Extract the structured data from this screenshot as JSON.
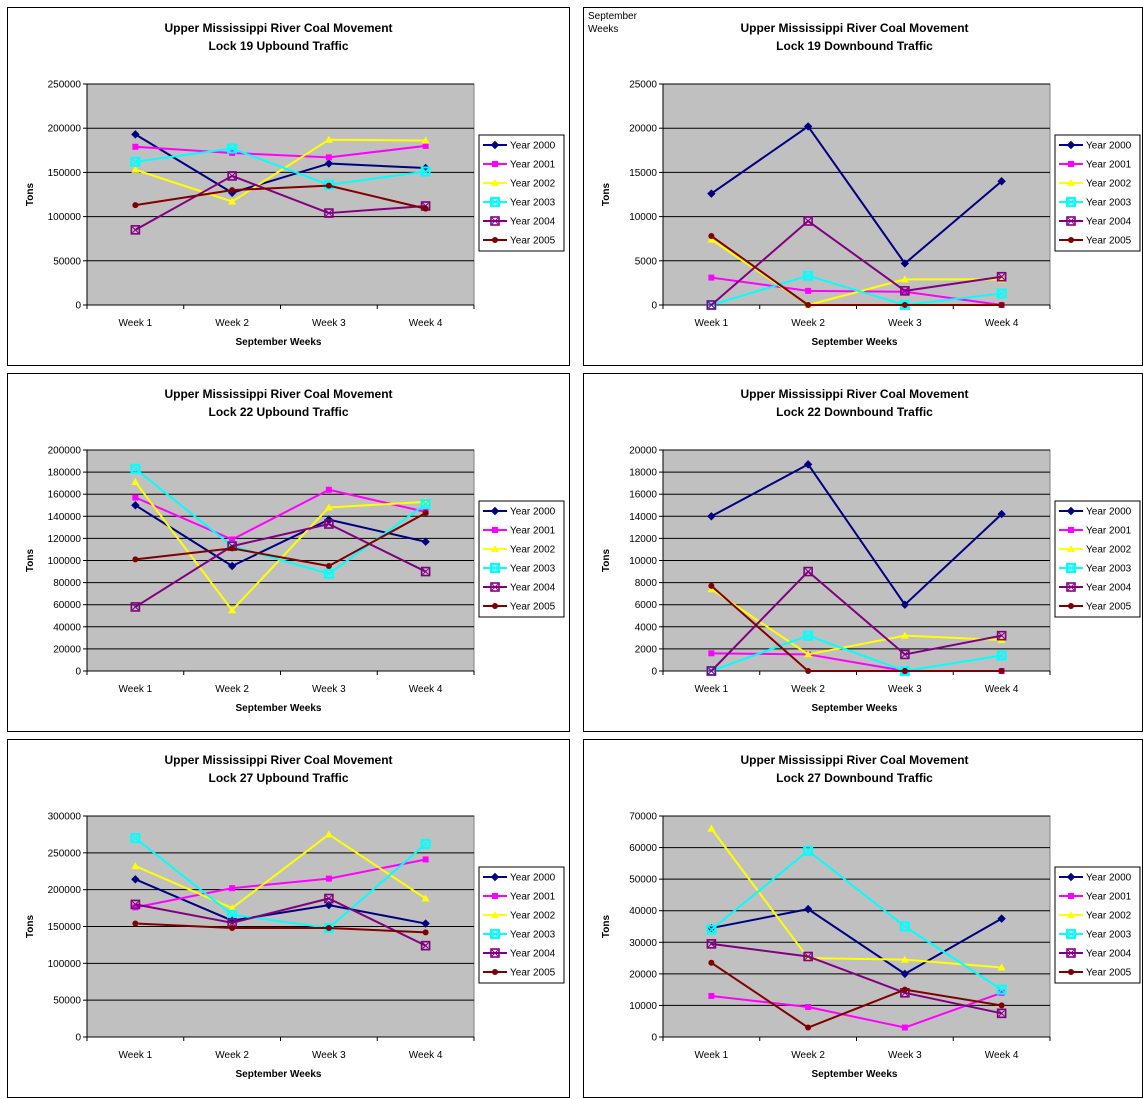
{
  "stray_label": "September Weeks",
  "legend_entries": [
    "Year 2000",
    "Year 2001",
    "Year 2002",
    "Year 2003",
    "Year 2004",
    "Year 2005"
  ],
  "colors": {
    "Year 2000": "#000080",
    "Year 2001": "#ff00ff",
    "Year 2002": "#ffff00",
    "Year 2003": "#00ffff",
    "Year 2004": "#800080",
    "Year 2005": "#800000",
    "plot_bg": "#c0c0c0"
  },
  "chart_data": [
    {
      "type": "line",
      "title": "Upper Mississippi River Coal Movement",
      "subtitle": "Lock 19 Upbound Traffic",
      "xlabel": "September Weeks",
      "ylabel": "Tons",
      "categories": [
        "Week 1",
        "Week 2",
        "Week 3",
        "Week 4"
      ],
      "ylim": [
        0,
        250000
      ],
      "yticks": [
        "0",
        "50000",
        "100000",
        "150000",
        "200000",
        "250000"
      ],
      "grid": true,
      "legend": "right",
      "series": [
        {
          "name": "Year 2000",
          "values": [
            193000,
            127000,
            160000,
            155000
          ]
        },
        {
          "name": "Year 2001",
          "values": [
            179000,
            172000,
            167000,
            180000
          ]
        },
        {
          "name": "Year 2002",
          "values": [
            153000,
            117000,
            187000,
            186000
          ]
        },
        {
          "name": "Year 2003",
          "values": [
            162000,
            177000,
            136000,
            151000
          ]
        },
        {
          "name": "Year 2004",
          "values": [
            85000,
            146000,
            104000,
            112000
          ]
        },
        {
          "name": "Year 2005",
          "values": [
            113000,
            130000,
            135000,
            109000
          ]
        }
      ]
    },
    {
      "type": "line",
      "title": "Upper Mississippi River Coal Movement",
      "subtitle": "Lock 19 Downbound Traffic",
      "xlabel": "September Weeks",
      "ylabel": "Tons",
      "categories": [
        "Week 1",
        "Week 2",
        "Week 3",
        "Week 4"
      ],
      "ylim": [
        0,
        25000
      ],
      "yticks": [
        "0",
        "5000",
        "10000",
        "15000",
        "20000",
        "25000"
      ],
      "grid": true,
      "legend": "right",
      "series": [
        {
          "name": "Year 2000",
          "values": [
            12600,
            20200,
            4700,
            14000
          ]
        },
        {
          "name": "Year 2001",
          "values": [
            3100,
            1600,
            1500,
            0
          ]
        },
        {
          "name": "Year 2002",
          "values": [
            7400,
            0,
            2900,
            2900
          ]
        },
        {
          "name": "Year 2003",
          "values": [
            0,
            3300,
            0,
            1300
          ]
        },
        {
          "name": "Year 2004",
          "values": [
            0,
            9500,
            1600,
            3200
          ]
        },
        {
          "name": "Year 2005",
          "values": [
            7800,
            0,
            0,
            0
          ]
        }
      ]
    },
    {
      "type": "line",
      "title": "Upper Mississippi River Coal Movement",
      "subtitle": "Lock 22 Upbound Traffic",
      "xlabel": "September Weeks",
      "ylabel": "Tons",
      "categories": [
        "Week 1",
        "Week 2",
        "Week 3",
        "Week 4"
      ],
      "ylim": [
        0,
        200000
      ],
      "yticks": [
        "0",
        "20000",
        "40000",
        "60000",
        "80000",
        "100000",
        "120000",
        "140000",
        "160000",
        "180000",
        "200000"
      ],
      "grid": true,
      "legend": "right",
      "series": [
        {
          "name": "Year 2000",
          "values": [
            150000,
            95000,
            137000,
            117000
          ]
        },
        {
          "name": "Year 2001",
          "values": [
            157000,
            119000,
            164000,
            144000
          ]
        },
        {
          "name": "Year 2002",
          "values": [
            171000,
            55000,
            148000,
            153000
          ]
        },
        {
          "name": "Year 2003",
          "values": [
            183000,
            113000,
            88000,
            151000
          ]
        },
        {
          "name": "Year 2004",
          "values": [
            58000,
            113000,
            133000,
            90000
          ]
        },
        {
          "name": "Year 2005",
          "values": [
            101000,
            111000,
            95000,
            143000
          ]
        }
      ]
    },
    {
      "type": "line",
      "title": "Upper Mississippi River Coal Movement",
      "subtitle": "Lock 22 Downbound Traffic",
      "xlabel": "September Weeks",
      "ylabel": "Tons",
      "categories": [
        "Week 1",
        "Week 2",
        "Week 3",
        "Week 4"
      ],
      "ylim": [
        0,
        20000
      ],
      "yticks": [
        "0",
        "2000",
        "4000",
        "6000",
        "8000",
        "10000",
        "12000",
        "14000",
        "16000",
        "18000",
        "20000"
      ],
      "grid": true,
      "legend": "right",
      "series": [
        {
          "name": "Year 2000",
          "values": [
            14000,
            18700,
            6000,
            14200
          ]
        },
        {
          "name": "Year 2001",
          "values": [
            1600,
            1500,
            0,
            0
          ]
        },
        {
          "name": "Year 2002",
          "values": [
            7400,
            1500,
            3200,
            2800
          ]
        },
        {
          "name": "Year 2003",
          "values": [
            0,
            3200,
            0,
            1400
          ]
        },
        {
          "name": "Year 2004",
          "values": [
            0,
            9000,
            1500,
            3200
          ]
        },
        {
          "name": "Year 2005",
          "values": [
            7700,
            0,
            0,
            0
          ]
        }
      ]
    },
    {
      "type": "line",
      "title": "Upper Mississippi River Coal Movement",
      "subtitle": "Lock 27 Upbound Traffic",
      "xlabel": "September Weeks",
      "ylabel": "Tons",
      "categories": [
        "Week 1",
        "Week 2",
        "Week 3",
        "Week 4"
      ],
      "ylim": [
        0,
        300000
      ],
      "yticks": [
        "0",
        "50000",
        "100000",
        "150000",
        "200000",
        "250000",
        "300000"
      ],
      "grid": true,
      "legend": "right",
      "series": [
        {
          "name": "Year 2000",
          "values": [
            214000,
            158000,
            179000,
            154000
          ]
        },
        {
          "name": "Year 2001",
          "values": [
            176000,
            202000,
            215000,
            241000
          ]
        },
        {
          "name": "Year 2002",
          "values": [
            232000,
            175000,
            275000,
            188000
          ]
        },
        {
          "name": "Year 2003",
          "values": [
            270000,
            166000,
            148000,
            262000
          ]
        },
        {
          "name": "Year 2004",
          "values": [
            180000,
            155000,
            188000,
            124000
          ]
        },
        {
          "name": "Year 2005",
          "values": [
            154000,
            148000,
            148000,
            142000
          ]
        }
      ]
    },
    {
      "type": "line",
      "title": "Upper Mississippi River Coal Movement",
      "subtitle": "Lock 27 Downbound Traffic",
      "xlabel": "September Weeks",
      "ylabel": "Tons",
      "categories": [
        "Week 1",
        "Week 2",
        "Week 3",
        "Week 4"
      ],
      "ylim": [
        0,
        70000
      ],
      "yticks": [
        "0",
        "10000",
        "20000",
        "30000",
        "40000",
        "50000",
        "60000",
        "70000"
      ],
      "grid": true,
      "legend": "right",
      "series": [
        {
          "name": "Year 2000",
          "values": [
            34500,
            40500,
            20000,
            37500
          ]
        },
        {
          "name": "Year 2001",
          "values": [
            13000,
            9500,
            3000,
            14000
          ]
        },
        {
          "name": "Year 2002",
          "values": [
            66000,
            25000,
            24500,
            22000
          ]
        },
        {
          "name": "Year 2003",
          "values": [
            34000,
            59000,
            35000,
            15000
          ]
        },
        {
          "name": "Year 2004",
          "values": [
            29500,
            25500,
            14000,
            7500
          ]
        },
        {
          "name": "Year 2005",
          "values": [
            23500,
            3000,
            15000,
            10000
          ]
        }
      ]
    }
  ]
}
